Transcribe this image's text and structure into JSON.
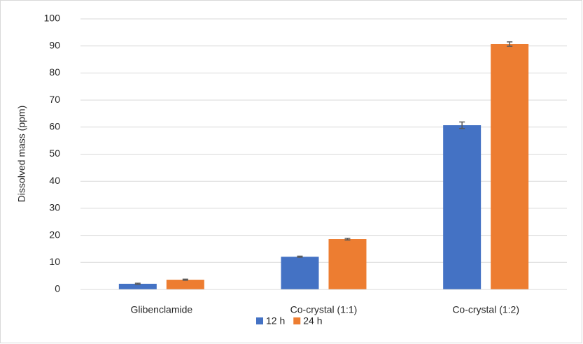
{
  "chart_data": {
    "type": "bar",
    "y_label": "Dissolved mass (ppm)",
    "categories": [
      "Glibenclamide",
      "Co-crystal (1:1)",
      "Co-crystal (1:2)"
    ],
    "series": [
      {
        "name": "12 h",
        "color": "#4472c4",
        "values": [
          2.1,
          12.1,
          60.7
        ],
        "errors": [
          0.2,
          0.2,
          1.2
        ]
      },
      {
        "name": "24 h",
        "color": "#ed7d31",
        "values": [
          3.6,
          18.6,
          90.7
        ],
        "errors": [
          0.2,
          0.3,
          0.8
        ]
      }
    ],
    "ylim": [
      0,
      100
    ],
    "yticks": [
      0,
      10,
      20,
      30,
      40,
      50,
      60,
      70,
      80,
      90,
      100
    ],
    "grid": true,
    "legend": "bottom"
  }
}
